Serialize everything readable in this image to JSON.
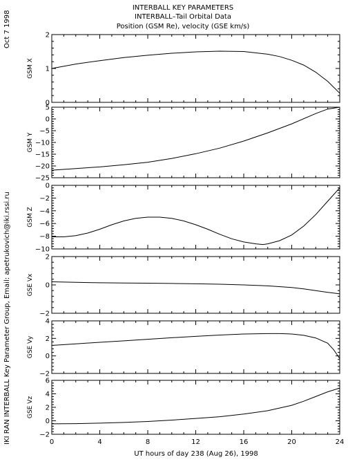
{
  "header": {
    "title": "INTERBALL KEY PARAMETERS",
    "subtitle": "INTERBALL–Tail Orbital Data",
    "subtitle2": "Position (GSM Re), velocity (GSE km/s)"
  },
  "side": {
    "date": "Oct  7 1998",
    "credit": "IKI RAN INTERBALL Key Parameter Group, Email: apetrukovich@iki.rssi.ru"
  },
  "chart_data": {
    "type": "line",
    "xlabel": "UT hours of day 238 (Aug 26), 1998",
    "xlim": [
      0,
      24
    ],
    "xticks": [
      0,
      4,
      8,
      12,
      16,
      20,
      24
    ],
    "grid": false,
    "panels": [
      {
        "ylabel": "GSM X",
        "ylim": [
          0,
          2
        ],
        "yticks": [
          0,
          1,
          2
        ],
        "x": [
          0,
          2,
          4,
          6,
          8,
          10,
          12,
          14,
          16,
          18,
          19,
          20,
          21,
          22,
          23,
          24
        ],
        "y": [
          1.0,
          1.13,
          1.23,
          1.32,
          1.39,
          1.45,
          1.49,
          1.51,
          1.5,
          1.42,
          1.35,
          1.24,
          1.1,
          0.89,
          0.62,
          0.27
        ]
      },
      {
        "ylabel": "GSM Y",
        "ylim": [
          -25,
          5
        ],
        "yticks": [
          -25,
          -20,
          -15,
          -10,
          -5,
          0,
          5
        ],
        "x": [
          0,
          2,
          4,
          6,
          8,
          10,
          12,
          14,
          16,
          18,
          20,
          22,
          23,
          24
        ],
        "y": [
          -21.8,
          -21.1,
          -20.4,
          -19.5,
          -18.4,
          -16.8,
          -14.8,
          -12.4,
          -9.4,
          -5.9,
          -2.1,
          2.3,
          4.2,
          5.0
        ]
      },
      {
        "ylabel": "GSM Z",
        "ylim": [
          -10,
          0
        ],
        "yticks": [
          -10,
          -8,
          -6,
          -4,
          -2,
          0
        ],
        "x": [
          0,
          1,
          2,
          3,
          4,
          5,
          6,
          7,
          8,
          9,
          10,
          11,
          12,
          13,
          14,
          15,
          16,
          17,
          17.6,
          18,
          19,
          20,
          21,
          22,
          23,
          24
        ],
        "y": [
          -8.1,
          -8.1,
          -7.9,
          -7.5,
          -6.9,
          -6.2,
          -5.6,
          -5.2,
          -5.0,
          -5.0,
          -5.2,
          -5.6,
          -6.2,
          -6.9,
          -7.7,
          -8.4,
          -8.9,
          -9.2,
          -9.3,
          -9.2,
          -8.7,
          -7.8,
          -6.4,
          -4.6,
          -2.5,
          -0.4
        ]
      },
      {
        "ylabel": "GSE Vx",
        "ylim": [
          -2,
          2
        ],
        "yticks": [
          -2,
          0,
          2
        ],
        "x": [
          0,
          2,
          4,
          6,
          8,
          10,
          12,
          14,
          16,
          18,
          20,
          21,
          22,
          23,
          24
        ],
        "y": [
          0.22,
          0.18,
          0.15,
          0.13,
          0.12,
          0.1,
          0.08,
          0.05,
          0.0,
          -0.07,
          -0.18,
          -0.28,
          -0.4,
          -0.52,
          -0.63
        ]
      },
      {
        "ylabel": "GSE Vy",
        "ylim": [
          -2,
          4
        ],
        "yticks": [
          -2,
          0,
          2,
          4
        ],
        "x": [
          0,
          2,
          4,
          6,
          8,
          10,
          12,
          14,
          16,
          18,
          19,
          20,
          21,
          22,
          23,
          23.5,
          24
        ],
        "y": [
          1.2,
          1.38,
          1.55,
          1.72,
          1.9,
          2.07,
          2.23,
          2.38,
          2.5,
          2.55,
          2.55,
          2.5,
          2.35,
          2.05,
          1.45,
          0.7,
          -0.3
        ]
      },
      {
        "ylabel": "GSE Vz",
        "ylim": [
          -2,
          6
        ],
        "yticks": [
          -2,
          0,
          2,
          4,
          6
        ],
        "x": [
          0,
          2,
          4,
          6,
          8,
          10,
          12,
          14,
          16,
          18,
          20,
          21,
          22,
          23,
          24
        ],
        "y": [
          -0.45,
          -0.42,
          -0.35,
          -0.25,
          -0.1,
          0.1,
          0.35,
          0.6,
          1.0,
          1.5,
          2.3,
          2.9,
          3.6,
          4.3,
          4.85
        ]
      }
    ]
  }
}
